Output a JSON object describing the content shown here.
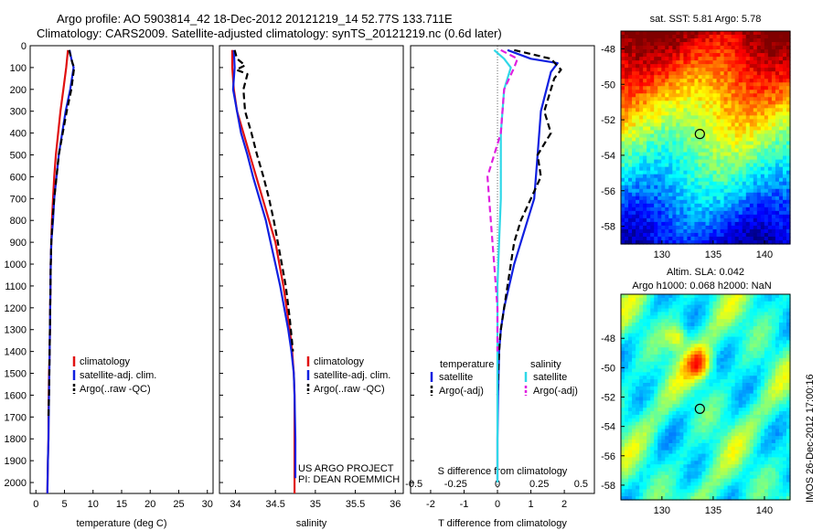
{
  "titles": {
    "line1": "Argo profile: AO 5903814_42 18-Dec-2012 20121219_14 52.77S 133.711E",
    "line2": "Climatology: CARS2009. Satellite-adjusted climatology: synTS_20121219.nc (0.6d later)"
  },
  "stamp": "IMOS 26-Dec-2012 17:00:16",
  "colors": {
    "clim": "#e01010",
    "sat": "#1020e0",
    "argo": "#000000",
    "sat_s": "#30d8e8",
    "argo_s": "#e020e0"
  },
  "chart_data": [
    {
      "type": "line",
      "xlabel": "temperature (deg C)",
      "ylabel": "",
      "xlim": [
        -1,
        31
      ],
      "ylim": [
        2050,
        0
      ],
      "xticks": [
        0,
        5,
        10,
        15,
        20,
        25,
        30
      ],
      "yticks": [
        0,
        100,
        200,
        300,
        400,
        500,
        600,
        700,
        800,
        900,
        1000,
        1100,
        1200,
        1300,
        1400,
        1500,
        1600,
        1700,
        1800,
        1900,
        2000
      ],
      "legend": [
        "climatology",
        "satellite-adj. clim.",
        "Argo(..raw -QC)"
      ],
      "series": [
        {
          "name": "climatology",
          "color": "clim",
          "dash": false,
          "x": [
            5.6,
            5.3,
            4.8,
            4.3,
            3.9,
            3.5,
            3.2,
            3.0,
            2.8,
            2.7,
            2.6,
            2.5,
            2.4,
            2.3,
            2.2,
            2.2,
            2.1,
            2.0
          ],
          "y": [
            20,
            100,
            200,
            300,
            400,
            500,
            600,
            700,
            800,
            900,
            1000,
            1200,
            1400,
            1500,
            1700,
            1800,
            1900,
            2050
          ]
        },
        {
          "name": "satellite-adj. clim.",
          "color": "sat",
          "dash": false,
          "x": [
            5.9,
            6.2,
            6.6,
            6.0,
            5.2,
            4.6,
            4.0,
            3.6,
            3.2,
            3.0,
            2.7,
            2.6,
            2.5,
            2.4,
            2.3,
            2.2,
            2.1,
            2.0
          ],
          "y": [
            20,
            60,
            100,
            200,
            300,
            400,
            500,
            600,
            700,
            800,
            900,
            1000,
            1200,
            1400,
            1600,
            1800,
            1900,
            2050
          ]
        },
        {
          "name": "Argo(..raw -QC)",
          "color": "argo",
          "dash": true,
          "x": [
            5.8,
            6.1,
            6.4,
            6.7,
            6.2,
            5.4,
            4.7,
            4.0,
            3.6,
            3.2,
            2.9,
            2.7,
            2.6,
            2.5,
            2.4,
            2.3,
            2.2
          ],
          "y": [
            20,
            50,
            80,
            100,
            200,
            300,
            400,
            500,
            600,
            700,
            800,
            900,
            1000,
            1200,
            1400,
            1600,
            1700
          ]
        }
      ]
    },
    {
      "type": "line",
      "xlabel": "salinity",
      "ylabel": "",
      "xlim": [
        33.8,
        36.1
      ],
      "ylim": [
        2050,
        0
      ],
      "xticks": [
        34,
        34.5,
        35,
        35.5,
        36
      ],
      "legend": [
        "climatology",
        "satellite-adj. clim.",
        "Argo(..raw -QC)"
      ],
      "annotation": [
        "US ARGO PROJECT",
        "PI: DEAN ROEMMICH"
      ],
      "series": [
        {
          "name": "climatology",
          "color": "clim",
          "dash": false,
          "x": [
            33.96,
            33.96,
            33.98,
            34.02,
            34.1,
            34.18,
            34.26,
            34.34,
            34.42,
            34.5,
            34.55,
            34.6,
            34.64,
            34.68,
            34.71,
            34.73,
            34.74,
            34.74,
            34.74
          ],
          "y": [
            20,
            100,
            200,
            300,
            400,
            500,
            600,
            700,
            800,
            900,
            1000,
            1100,
            1200,
            1300,
            1400,
            1500,
            1600,
            1800,
            2050
          ]
        },
        {
          "name": "satellite-adj. clim.",
          "color": "sat",
          "dash": false,
          "x": [
            33.98,
            33.99,
            33.97,
            34.02,
            34.07,
            34.15,
            34.22,
            34.3,
            34.38,
            34.44,
            34.5,
            34.56,
            34.61,
            34.66,
            34.7,
            34.73,
            34.74,
            34.75,
            34.75
          ],
          "y": [
            20,
            100,
            200,
            300,
            400,
            500,
            600,
            700,
            800,
            900,
            1000,
            1100,
            1200,
            1300,
            1400,
            1500,
            1600,
            1800,
            1980
          ]
        },
        {
          "name": "Argo(..raw -QC)",
          "color": "argo",
          "dash": true,
          "x": [
            33.99,
            34.02,
            34.12,
            34.01,
            34.15,
            34.1,
            34.12,
            34.2,
            34.27,
            34.35,
            34.42,
            34.48,
            34.53,
            34.58,
            34.63,
            34.68,
            34.72
          ],
          "y": [
            20,
            60,
            90,
            110,
            130,
            200,
            300,
            400,
            500,
            600,
            700,
            800,
            900,
            1000,
            1100,
            1250,
            1400
          ]
        }
      ]
    },
    {
      "type": "line",
      "xlabel": "T difference from climatology",
      "xlabel2": "S difference from climatology",
      "ylabel": "",
      "xlim": [
        -2.6,
        2.9
      ],
      "ylim": [
        2050,
        0
      ],
      "xticks": [
        -2,
        -1,
        0,
        1,
        2
      ],
      "xticks2": [
        "-0.5",
        "-0.25",
        "0",
        "0.25",
        "0.5"
      ],
      "legend_headers": [
        "temperature",
        "salinity"
      ],
      "legend": [
        "satellite",
        "Argo(-adj)",
        "satellite",
        "Argo(-adj)"
      ],
      "series": [
        {
          "name": "satellite",
          "group": "temperature",
          "color": "sat",
          "dash": false,
          "x": [
            0.3,
            1.0,
            1.8,
            1.6,
            1.3,
            1.2,
            1.1,
            0.9,
            0.7,
            0.5,
            0.35,
            0.2,
            0.1,
            0.05,
            0.02,
            0.0,
            0.0
          ],
          "y": [
            20,
            60,
            80,
            120,
            300,
            500,
            700,
            800,
            900,
            1000,
            1100,
            1200,
            1300,
            1400,
            1600,
            1800,
            2000
          ]
        },
        {
          "name": "Argo(-adj)",
          "group": "temperature",
          "color": "argo",
          "dash": true,
          "x": [
            0.5,
            1.6,
            1.9,
            1.7,
            1.4,
            1.6,
            1.2,
            1.3,
            1.0,
            0.7,
            0.5,
            0.4,
            0.3,
            0.2,
            0.1,
            0.05,
            0.0
          ],
          "y": [
            20,
            60,
            110,
            150,
            300,
            400,
            500,
            600,
            700,
            800,
            900,
            1000,
            1100,
            1200,
            1300,
            1400,
            1600
          ]
        },
        {
          "name": "satellite",
          "group": "salinity",
          "color": "sat_s",
          "dash": false,
          "x": [
            -0.1,
            0.2,
            0.4,
            0.2,
            0.1,
            0.1,
            0.05,
            0.0,
            0.0,
            0.0,
            0.0,
            0.0
          ],
          "y": [
            20,
            60,
            100,
            200,
            400,
            700,
            900,
            1100,
            1300,
            1500,
            1700,
            2000
          ]
        },
        {
          "name": "Argo(-adj)",
          "group": "salinity",
          "color": "argo_s",
          "dash": true,
          "x": [
            0.1,
            0.6,
            0.5,
            0.2,
            0.1,
            -0.1,
            -0.3,
            -0.2,
            -0.1,
            0.0,
            0.0
          ],
          "y": [
            20,
            60,
            100,
            200,
            400,
            500,
            600,
            800,
            1000,
            1200,
            1400
          ]
        }
      ]
    },
    {
      "type": "heatmap",
      "title": "sat. SST: 5.81  Argo: 5.78",
      "xlim": [
        126,
        142.5
      ],
      "ylim": [
        -59,
        -47
      ],
      "xticks": [
        130,
        135,
        140
      ],
      "yticks": [
        -48,
        -50,
        -52,
        -54,
        -56,
        -58
      ],
      "marker": {
        "lon": 133.7,
        "lat": -52.8
      }
    },
    {
      "type": "heatmap",
      "title": "Altim. SLA: 0.042",
      "subtitle": "Argo h1000: 0.068 h2000: NaN",
      "xlim": [
        126,
        142.5
      ],
      "ylim": [
        -59,
        -45
      ],
      "xticks": [
        130,
        135,
        140
      ],
      "yticks": [
        -48,
        -50,
        -52,
        -54,
        -56,
        -58
      ],
      "marker": {
        "lon": 133.7,
        "lat": -52.8
      }
    }
  ]
}
